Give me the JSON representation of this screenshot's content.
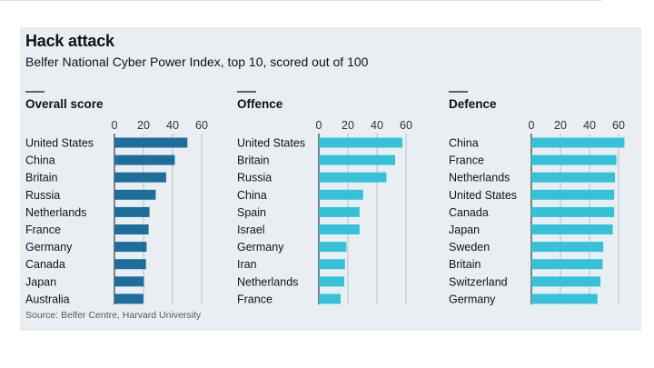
{
  "title": "Hack attack",
  "subtitle": "Belfer National Cyber Power Index, top 10, scored out of 100",
  "source": "Source: Belfer Centre, Harvard University",
  "colors": {
    "overall": "#1e6e9b",
    "offence": "#35c2d7",
    "defence": "#35c2d7",
    "grid": "#b6c0c8",
    "background": "#e9eef3"
  },
  "chart_data": [
    {
      "type": "bar",
      "orientation": "horizontal",
      "title": "Overall score",
      "xlim": [
        0,
        70
      ],
      "ticks": [
        0,
        20,
        40,
        60
      ],
      "categories": [
        "United States",
        "China",
        "Britain",
        "Russia",
        "Netherlands",
        "France",
        "Germany",
        "Canada",
        "Japan",
        "Australia"
      ],
      "values": [
        50.2,
        41.5,
        35.6,
        28.4,
        24.1,
        23.5,
        22.1,
        21.7,
        20.3,
        19.9
      ]
    },
    {
      "type": "bar",
      "orientation": "horizontal",
      "title": "Offence",
      "xlim": [
        0,
        70
      ],
      "ticks": [
        0,
        20,
        40,
        60
      ],
      "categories": [
        "United States",
        "Britain",
        "Russia",
        "China",
        "Spain",
        "Israel",
        "Germany",
        "Iran",
        "Netherlands",
        "France"
      ],
      "values": [
        57.5,
        52.5,
        46.5,
        30.5,
        28.0,
        28.0,
        19.0,
        18.0,
        17.5,
        15.0
      ]
    },
    {
      "type": "bar",
      "orientation": "horizontal",
      "title": "Defence",
      "xlim": [
        0,
        70
      ],
      "ticks": [
        0,
        20,
        40,
        60
      ],
      "categories": [
        "China",
        "France",
        "Netherlands",
        "United States",
        "Canada",
        "Japan",
        "Sweden",
        "Britain",
        "Switzerland",
        "Germany"
      ],
      "values": [
        64.0,
        58.5,
        57.5,
        57.0,
        57.0,
        56.0,
        49.5,
        49.0,
        47.5,
        45.5
      ]
    }
  ]
}
